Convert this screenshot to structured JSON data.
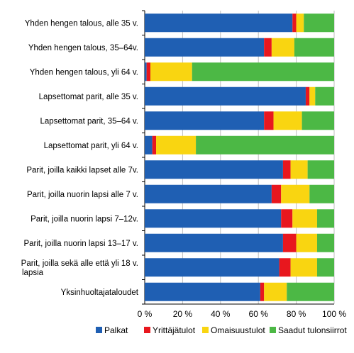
{
  "chart_data": {
    "type": "bar",
    "orientation": "horizontal",
    "stacked": true,
    "percent_stacked": true,
    "categories": [
      [
        "Yhden hengen talous, alle 35 v."
      ],
      [
        "Yhden hengen talous, 35–64v."
      ],
      [
        "Yhden hengen talous, yli 64 v."
      ],
      [
        "Lapsettomat parit, alle 35 v."
      ],
      [
        "Lapsettomat parit, 35–64 v."
      ],
      [
        "Lapsettomat parit, yli 64 v."
      ],
      [
        "Parit, joilla kaikki lapset alle 7v."
      ],
      [
        "Parit, joilla nuorin lapsi alle 7 v."
      ],
      [
        "Parit, joilla nuorin lapsi 7–12v."
      ],
      [
        "Parit, joilla nuorin lapsi 13–17 v."
      ],
      [
        "Parit, joilla sekä alle että yli 18 v.",
        "lapsia"
      ],
      [
        "Yksinhuoltajataloudet"
      ]
    ],
    "series": [
      {
        "name": "Palkat",
        "color": "#1f5fb3",
        "values": [
          78,
          63,
          1,
          85,
          63,
          4,
          73,
          67,
          72,
          73,
          71,
          61
        ]
      },
      {
        "name": "Yrittäjätulot",
        "color": "#e8171e",
        "values": [
          2,
          4,
          2,
          2,
          5,
          2,
          4,
          5,
          6,
          7,
          6,
          2
        ]
      },
      {
        "name": "Omaisuustulot",
        "color": "#f9d511",
        "values": [
          4,
          12,
          22,
          3,
          15,
          21,
          9,
          15,
          13,
          11,
          14,
          12
        ]
      },
      {
        "name": "Saadut tulonsiirrot",
        "color": "#4cb845",
        "values": [
          16,
          21,
          75,
          10,
          17,
          73,
          14,
          13,
          9,
          9,
          9,
          25
        ]
      }
    ],
    "xlim": [
      0,
      100
    ],
    "xticks": [
      "0 %",
      "20 %",
      "40 %",
      "60 %",
      "80 %",
      "100 %"
    ],
    "grid": true,
    "legend_position": "bottom"
  }
}
